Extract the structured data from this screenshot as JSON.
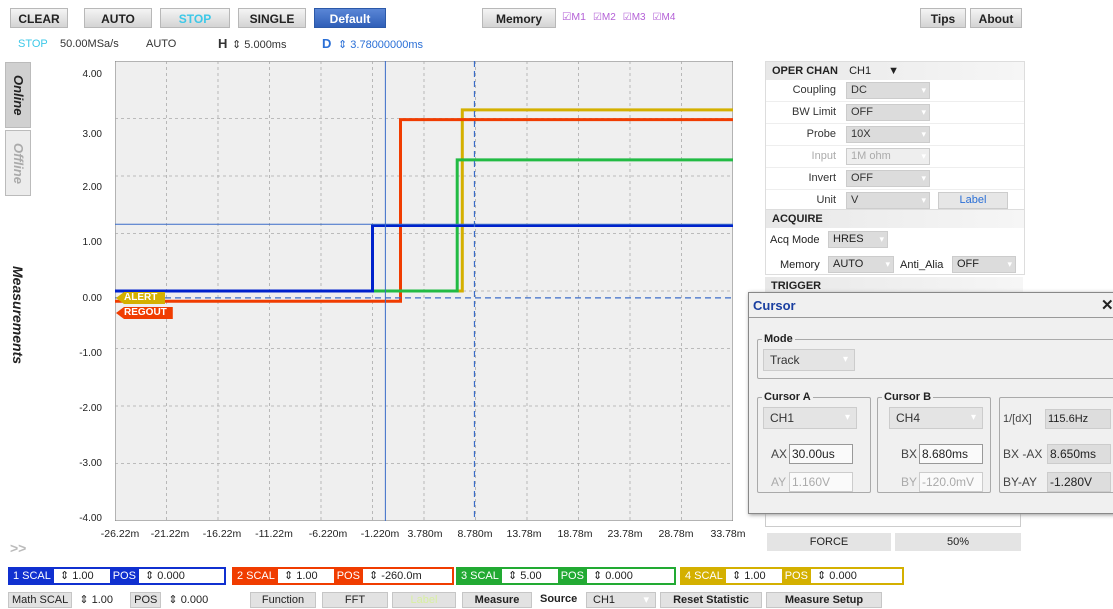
{
  "toolbar": {
    "clear": "CLEAR",
    "auto": "AUTO",
    "stop": "STOP",
    "single": "SINGLE",
    "default": "Default",
    "memory": "Memory",
    "m1": "M1",
    "m2": "M2",
    "m3": "M3",
    "m4": "M4",
    "tips": "Tips",
    "about": "About"
  },
  "status": {
    "state": "STOP",
    "rate": "50.00MSa/s",
    "mode": "AUTO",
    "h_label": "H",
    "h_value": "5.000ms",
    "d_label": "D",
    "d_value": "3.78000000ms"
  },
  "side_tabs": {
    "online": "Online",
    "offline": "Offline",
    "measurements": "Measurements",
    "expand": ">>"
  },
  "chart_data": {
    "type": "line",
    "y_ticks": [
      "4.00",
      "3.00",
      "2.00",
      "1.00",
      "0.00",
      "-1.00",
      "-2.00",
      "-3.00",
      "-4.00"
    ],
    "x_ticks": [
      "-26.22m",
      "-21.22m",
      "-16.22m",
      "-11.22m",
      "-6.220m",
      "-1.220m",
      "3.780m",
      "8.780m",
      "13.78m",
      "18.78m",
      "23.78m",
      "28.78m",
      "33.78m"
    ],
    "ylim": [
      -4,
      4
    ],
    "xlim": [
      -26.22,
      33.78
    ],
    "grid": true,
    "series": [
      {
        "name": "ALERT",
        "color": "#d4b000",
        "x": [
          -26.22,
          7.5,
          7.5,
          33.78
        ],
        "y": [
          0.0,
          0.0,
          3.15,
          3.15
        ]
      },
      {
        "name": "REGOUT",
        "color": "#f03c00",
        "x": [
          -26.22,
          1.5,
          1.5,
          33.78
        ],
        "y": [
          -0.18,
          -0.18,
          2.98,
          2.98
        ]
      },
      {
        "x": [
          -26.22,
          7.0,
          7.0,
          33.78
        ],
        "y": [
          0.0,
          0.0,
          2.28,
          2.28
        ],
        "color": "#22bb44"
      },
      {
        "x": [
          -26.22,
          -1.22,
          -1.22,
          33.78
        ],
        "y": [
          0.0,
          0.0,
          1.14,
          1.14
        ],
        "color": "#0022cc"
      }
    ],
    "cursor": {
      "ax": 0.03,
      "bx": 8.68,
      "ay": 1.16,
      "by": -0.12
    }
  },
  "channel_markers": {
    "alert": "ALERT",
    "regout": "REGOUT"
  },
  "oper_chan": {
    "title": "OPER CHAN",
    "channel": "CH1",
    "rows": [
      {
        "label": "Coupling",
        "value": "DC"
      },
      {
        "label": "BW Limit",
        "value": "OFF"
      },
      {
        "label": "Probe",
        "value": "10X"
      },
      {
        "label": "Input",
        "value": "1M ohm"
      },
      {
        "label": "Invert",
        "value": "OFF"
      },
      {
        "label": "Unit",
        "value": "V"
      }
    ],
    "label_button": "Label"
  },
  "acquire": {
    "title": "ACQUIRE",
    "acq_mode_label": "Acq Mode",
    "acq_mode": "HRES",
    "memory_label": "Memory",
    "memory": "AUTO",
    "anti_alias_label": "Anti_Alia",
    "anti_alias": "OFF"
  },
  "trigger": {
    "title": "TRIGGER",
    "force": "FORCE",
    "level": "50%"
  },
  "cursor_dialog": {
    "title": "Cursor",
    "close": "✕",
    "mode_caption": "Mode",
    "mode": "Track",
    "cursor_a_caption": "Cursor A",
    "cursor_a_source": "CH1",
    "cursor_b_caption": "Cursor B",
    "cursor_b_source": "CH4",
    "ax_label": "AX",
    "ax": "30.00us",
    "ay_label": "AY",
    "ay": "1.160V",
    "bx_label": "BX",
    "bx": "8.680ms",
    "by_label": "BY",
    "by": "-120.0mV",
    "inv_dx_label": "1/[dX]",
    "inv_dx": "115.6Hz",
    "bx_ax_label": "BX -AX",
    "bx_ax": "8.650ms",
    "by_ay_label": "BY-AY",
    "by_ay": "-1.280V"
  },
  "channels": [
    {
      "num": "1",
      "scal_label": "SCAL",
      "scal": "1.00",
      "pos_label": "POS",
      "pos": "0.000",
      "color": "#1030d0"
    },
    {
      "num": "2",
      "scal_label": "SCAL",
      "scal": "1.00",
      "pos_label": "POS",
      "pos": "-260.0m",
      "color": "#f03c00"
    },
    {
      "num": "3",
      "scal_label": "SCAL",
      "scal": "5.00",
      "pos_label": "POS",
      "pos": "0.000",
      "color": "#22aa33"
    },
    {
      "num": "4",
      "scal_label": "SCAL",
      "scal": "1.00",
      "pos_label": "POS",
      "pos": "0.000",
      "color": "#d4b000"
    }
  ],
  "math": {
    "label": "Math",
    "scal_label": "SCAL",
    "scal": "1.00",
    "pos_label": "POS",
    "pos": "0.000",
    "function": "Function",
    "fft": "FFT",
    "label_btn": "Label"
  },
  "measure": {
    "measure": "Measure",
    "source_label": "Source",
    "source": "CH1",
    "reset": "Reset Statistic",
    "setup": "Measure Setup"
  }
}
